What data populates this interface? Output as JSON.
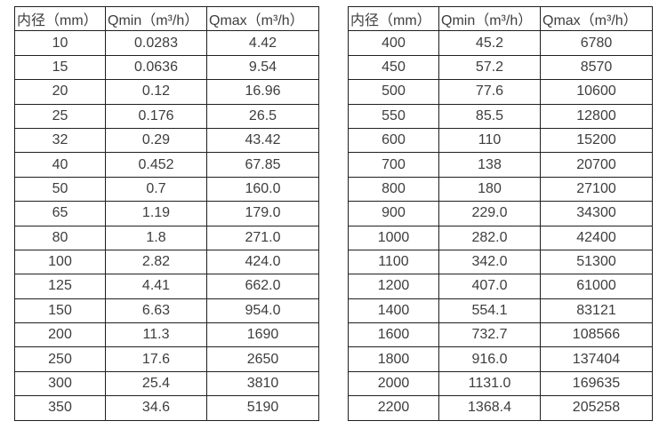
{
  "page": {
    "background_color": "#ffffff",
    "border_color": "#1f1f1f",
    "text_color": "#3d3d3d"
  },
  "tables": [
    {
      "name": "small-diameter-flow-table",
      "headers": [
        "内径（mm）",
        "Qmin（m³/h）",
        "Qmax（m³/h）"
      ],
      "rows": [
        [
          "10",
          "0.0283",
          "4.42"
        ],
        [
          "15",
          "0.0636",
          "9.54"
        ],
        [
          "20",
          "0.12",
          "16.96"
        ],
        [
          "25",
          "0.176",
          "26.5"
        ],
        [
          "32",
          "0.29",
          "43.42"
        ],
        [
          "40",
          "0.452",
          "67.85"
        ],
        [
          "50",
          "0.7",
          "160.0"
        ],
        [
          "65",
          "1.19",
          "179.0"
        ],
        [
          "80",
          "1.8",
          "271.0"
        ],
        [
          "100",
          "2.82",
          "424.0"
        ],
        [
          "125",
          "4.41",
          "662.0"
        ],
        [
          "150",
          "6.63",
          "954.0"
        ],
        [
          "200",
          "11.3",
          "1690"
        ],
        [
          "250",
          "17.6",
          "2650"
        ],
        [
          "300",
          "25.4",
          "3810"
        ],
        [
          "350",
          "34.6",
          "5190"
        ]
      ]
    },
    {
      "name": "large-diameter-flow-table",
      "headers": [
        "内径（mm）",
        "Qmin（m³/h）",
        "Qmax（m³/h）"
      ],
      "rows": [
        [
          "400",
          "45.2",
          "6780"
        ],
        [
          "450",
          "57.2",
          "8570"
        ],
        [
          "500",
          "77.6",
          "10600"
        ],
        [
          "550",
          "85.5",
          "12800"
        ],
        [
          "600",
          "110",
          "15200"
        ],
        [
          "700",
          "138",
          "20700"
        ],
        [
          "800",
          "180",
          "27100"
        ],
        [
          "900",
          "229.0",
          "34300"
        ],
        [
          "1000",
          "282.0",
          "42400"
        ],
        [
          "1100",
          "342.0",
          "51300"
        ],
        [
          "1200",
          "407.0",
          "61000"
        ],
        [
          "1400",
          "554.1",
          "83121"
        ],
        [
          "1600",
          "732.7",
          "108566"
        ],
        [
          "1800",
          "916.0",
          "137404"
        ],
        [
          "2000",
          "1131.0",
          "169635"
        ],
        [
          "2200",
          "1368.4",
          "205258"
        ]
      ]
    }
  ]
}
